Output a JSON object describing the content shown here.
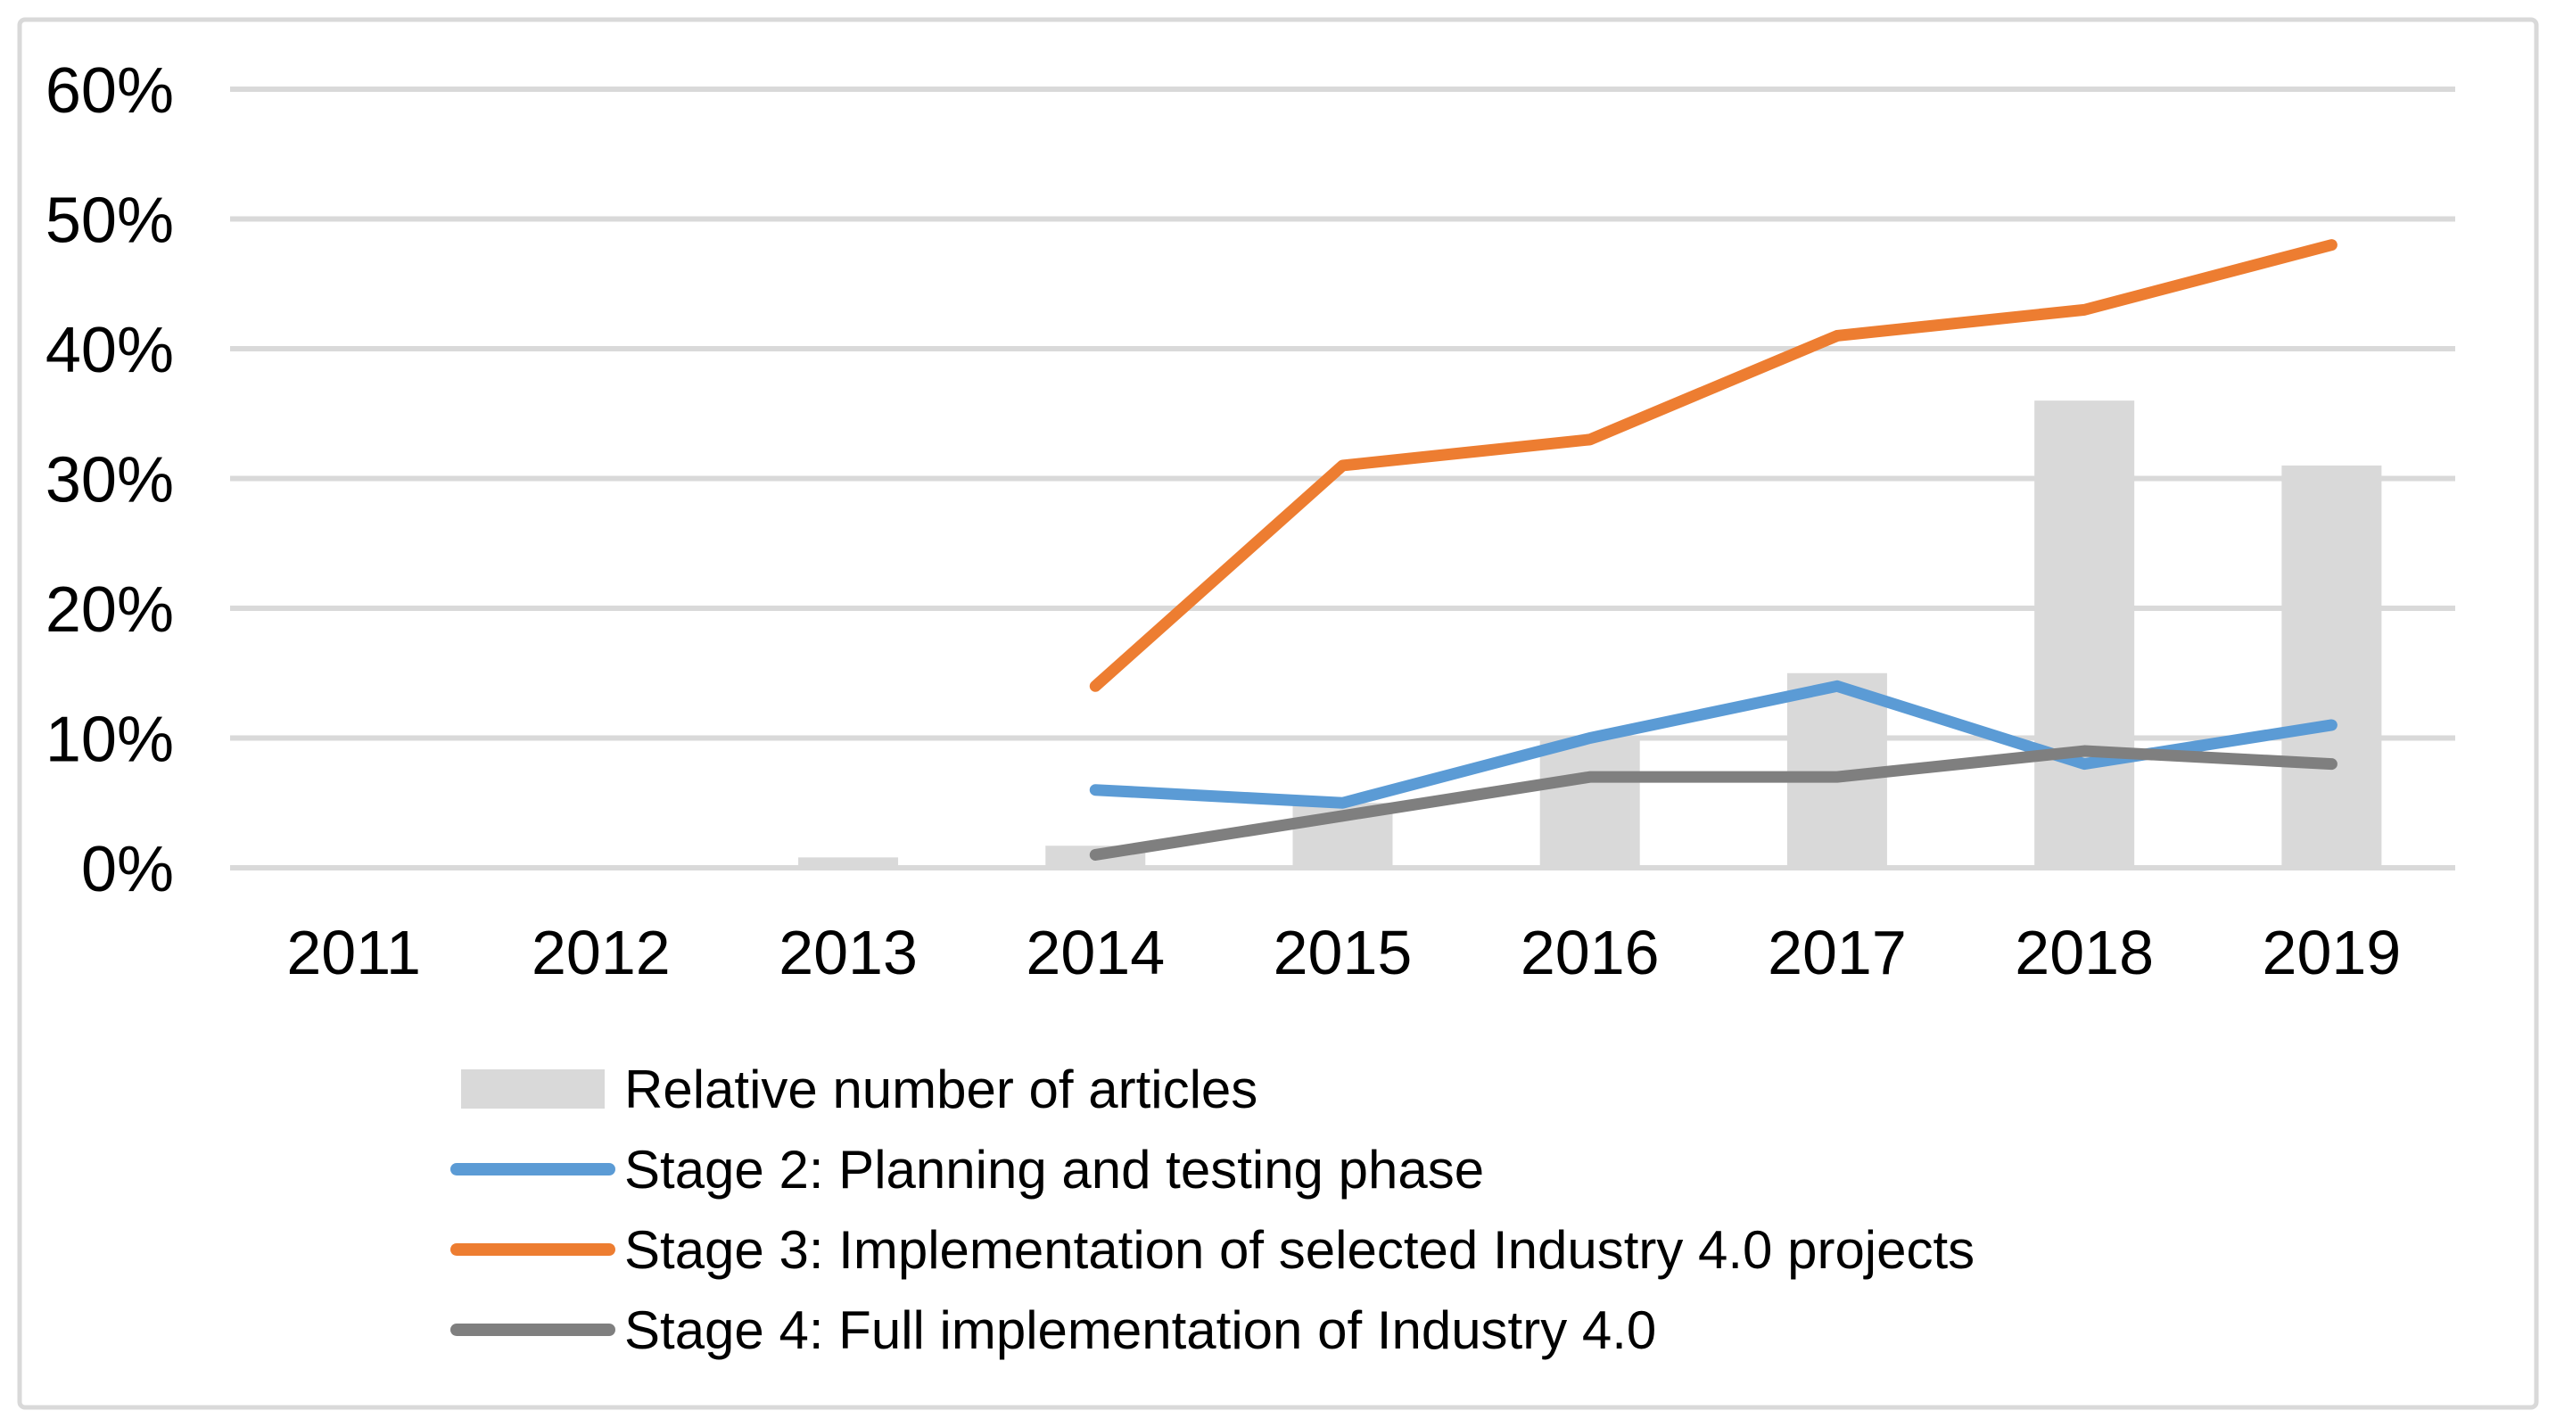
{
  "styles": {
    "background": "#FFFFFF",
    "border_color": "#D9D9D9",
    "grid_color": "#D9D9D9",
    "text_color": "#000000",
    "bar_color": "#D9D9D9",
    "stage2_color": "#5B9BD5",
    "stage3_color": "#ED7D31",
    "stage4_color": "#7F7F7F"
  },
  "chart_data": {
    "type": "combo-bar-line",
    "title": "",
    "categories": [
      "2011",
      "2012",
      "2013",
      "2014",
      "2015",
      "2016",
      "2017",
      "2018",
      "2019"
    ],
    "y_axis": {
      "min": 0,
      "max": 60,
      "step": 10,
      "unit": "%",
      "tick_labels": [
        "0%",
        "10%",
        "20%",
        "30%",
        "40%",
        "50%",
        "60%"
      ]
    },
    "grid": true,
    "legend_position": "bottom-left",
    "series": [
      {
        "name": "Relative number of articles",
        "type": "bar",
        "color": "#D9D9D9",
        "values": [
          null,
          null,
          0.8,
          1.7,
          5,
          10,
          15,
          36,
          31
        ]
      },
      {
        "name": "Stage 2: Planning and testing phase",
        "type": "line",
        "color": "#5B9BD5",
        "values": [
          null,
          null,
          null,
          6,
          5,
          10,
          14,
          8,
          11
        ]
      },
      {
        "name": "Stage 3: Implementation of selected Industry 4.0 projects",
        "type": "line",
        "color": "#ED7D31",
        "values": [
          null,
          null,
          null,
          14,
          31,
          33,
          41,
          43,
          48
        ]
      },
      {
        "name": "Stage 4: Full implementation of Industry 4.0",
        "type": "line",
        "color": "#7F7F7F",
        "values": [
          null,
          null,
          null,
          1,
          4,
          7,
          7,
          9,
          8
        ]
      }
    ]
  }
}
